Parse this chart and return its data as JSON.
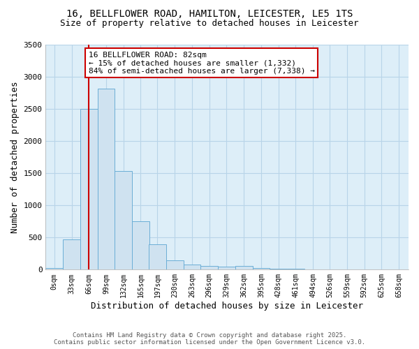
{
  "title_line1": "16, BELLFLOWER ROAD, HAMILTON, LEICESTER, LE5 1TS",
  "title_line2": "Size of property relative to detached houses in Leicester",
  "xlabel": "Distribution of detached houses by size in Leicester",
  "ylabel": "Number of detached properties",
  "bin_width": 33,
  "bin_starts": [
    0,
    33,
    66,
    99,
    132,
    165,
    197,
    230,
    263,
    296,
    329,
    362,
    395,
    428,
    461,
    494,
    526,
    559,
    592,
    625,
    658
  ],
  "bar_heights": [
    20,
    470,
    2500,
    2820,
    1530,
    750,
    390,
    150,
    80,
    55,
    45,
    55,
    20,
    15,
    15,
    5,
    5,
    5,
    3,
    2,
    0
  ],
  "bar_facecolor": "#cfe2f0",
  "bar_edgecolor": "#6baed6",
  "property_size": 82,
  "vline_color": "#cc0000",
  "annotation_text": "16 BELLFLOWER ROAD: 82sqm\n← 15% of detached houses are smaller (1,332)\n84% of semi-detached houses are larger (7,338) →",
  "annotation_box_edgecolor": "#cc0000",
  "annotation_box_facecolor": "#ffffff",
  "ylim": [
    0,
    3500
  ],
  "yticks": [
    0,
    500,
    1000,
    1500,
    2000,
    2500,
    3000,
    3500
  ],
  "grid_color": "#b8d4e8",
  "background_color": "#ddeef8",
  "footer_line1": "Contains HM Land Registry data © Crown copyright and database right 2025.",
  "footer_line2": "Contains public sector information licensed under the Open Government Licence v3.0."
}
